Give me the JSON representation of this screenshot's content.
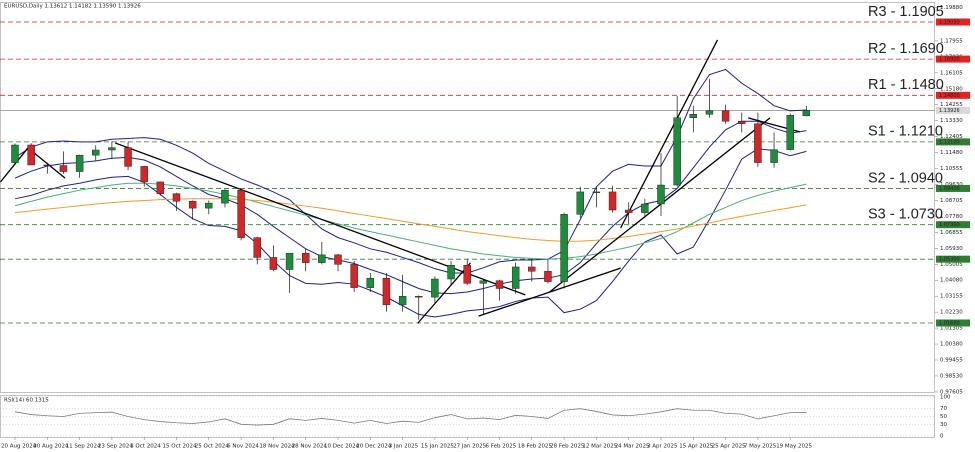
{
  "chart_data": {
    "type": "candlestick",
    "header": "EURUSD,Daily  1.13612 1.14182 1.13590 1.13926",
    "categories": [
      "20 Aug 2024",
      null,
      "30 Aug 2024",
      null,
      "11 Sep 2024",
      null,
      "23 Sep 2024",
      null,
      "3 Oct 2024",
      null,
      "15 Oct 2024",
      null,
      "25 Oct 2024",
      null,
      "6 Nov 2024",
      null,
      "18 Nov 2024",
      null,
      "28 Nov 2024",
      null,
      "10 Dec 2024",
      null,
      "20 Dec 2024",
      null,
      "3 Jan 2025",
      null,
      "15 Jan 2025",
      null,
      "27 Jan 2025",
      null,
      "6 Feb 2025",
      null,
      "18 Feb 2025",
      null,
      "28 Feb 2025",
      null,
      "12 Mar 2025",
      null,
      "24 Mar 2025",
      null,
      "3 Apr 2025",
      null,
      "15 Apr 2025",
      null,
      "25 Apr 2025",
      null,
      "7 May 2025",
      null,
      "19 May 2025",
      null
    ],
    "open": [
      1.109,
      1.1192,
      1.1076,
      1.1073,
      1.1038,
      1.1133,
      1.1163,
      1.1177,
      1.1068,
      1.0978,
      1.091,
      1.0866,
      1.0826,
      1.0855,
      1.093,
      1.0655,
      1.054,
      1.047,
      1.0565,
      1.051,
      1.0555,
      1.05,
      1.0365,
      1.042,
      1.0265,
      1.0315,
      1.031,
      1.0415,
      1.0495,
      1.039,
      1.0405,
      1.036,
      1.0485,
      1.046,
      1.04,
      1.079,
      1.092,
      1.092,
      1.0815,
      1.08,
      1.085,
      1.096,
      1.135,
      1.137,
      1.139,
      1.133,
      1.1315,
      1.109,
      1.1165,
      1.13612
    ],
    "high": [
      1.1201,
      1.1202,
      1.109,
      1.1155,
      1.1136,
      1.119,
      1.1214,
      1.1209,
      1.107,
      1.098,
      1.0915,
      1.087,
      1.087,
      1.0936,
      1.0937,
      1.066,
      1.061,
      1.056,
      1.059,
      1.063,
      1.056,
      1.052,
      1.045,
      1.045,
      1.044,
      1.032,
      1.043,
      1.052,
      1.0532,
      1.041,
      1.041,
      1.051,
      1.053,
      1.053,
      1.08,
      1.095,
      1.095,
      1.0955,
      1.086,
      1.088,
      1.1145,
      1.1475,
      1.142,
      1.1575,
      1.1425,
      1.138,
      1.138,
      1.1265,
      1.1375,
      1.14182
    ],
    "low": [
      1.1075,
      1.1079,
      1.1026,
      1.1025,
      1.1002,
      1.11,
      1.111,
      1.1045,
      1.095,
      1.09,
      1.081,
      1.076,
      1.079,
      1.083,
      1.064,
      1.05,
      1.046,
      1.0335,
      1.046,
      1.05,
      1.046,
      1.034,
      1.034,
      1.0225,
      1.0225,
      1.0178,
      1.027,
      1.038,
      1.038,
      1.021,
      1.029,
      1.033,
      1.04,
      1.039,
      1.036,
      1.077,
      1.083,
      1.08,
      1.0735,
      1.077,
      1.078,
      1.095,
      1.1265,
      1.135,
      1.1315,
      1.1265,
      1.1065,
      1.106,
      1.116,
      1.1359
    ],
    "close": [
      1.1192,
      1.1076,
      1.1073,
      1.1038,
      1.1133,
      1.1163,
      1.1177,
      1.1068,
      1.0978,
      1.091,
      1.0866,
      1.0826,
      1.0855,
      1.093,
      1.0655,
      1.054,
      1.047,
      1.0565,
      1.051,
      1.0555,
      1.05,
      1.0365,
      1.042,
      1.0265,
      1.0315,
      1.031,
      1.0415,
      1.0495,
      1.039,
      1.0405,
      1.036,
      1.0485,
      1.046,
      1.04,
      1.079,
      1.092,
      1.092,
      1.0815,
      1.08,
      1.085,
      1.096,
      1.135,
      1.137,
      1.139,
      1.133,
      1.1315,
      1.109,
      1.1165,
      1.1365,
      1.13926
    ],
    "up_color": "#1e8c3a",
    "down_color": "#d02828",
    "wick_color": "#111111",
    "series": [
      {
        "color": "#1f1f8f",
        "values": [
          1.112,
          1.118,
          1.121,
          1.1215,
          1.121,
          1.121,
          1.1225,
          1.123,
          1.1235,
          1.1225,
          1.119,
          1.1145,
          1.1085,
          1.104,
          1.0995,
          1.096,
          1.092,
          1.0875,
          1.079,
          1.0705,
          1.0655,
          1.0625,
          1.059,
          1.057,
          1.054,
          1.051,
          1.0475,
          1.045,
          1.045,
          1.048,
          1.0515,
          1.0525,
          1.0525,
          1.053,
          1.058,
          1.076,
          1.095,
          1.104,
          1.108,
          1.107,
          1.107,
          1.124,
          1.146,
          1.16,
          1.163,
          1.155,
          1.149,
          1.142,
          1.139,
          1.1395
        ]
      },
      {
        "color": "#1f1f8f",
        "values": [
          1.1,
          1.104,
          1.107,
          1.1085,
          1.109,
          1.11,
          1.1115,
          1.112,
          1.1105,
          1.1065,
          1.101,
          1.0955,
          1.0905,
          1.088,
          1.0845,
          1.079,
          1.072,
          1.0655,
          1.059,
          1.0545,
          1.0525,
          1.0505,
          1.047,
          1.044,
          1.04,
          1.036,
          1.0335,
          1.033,
          1.034,
          1.036,
          1.0385,
          1.0405,
          1.0415,
          1.042,
          1.044,
          1.051,
          1.062,
          1.072,
          1.08,
          1.085,
          1.087,
          1.094,
          1.106,
          1.118,
          1.128,
          1.133,
          1.133,
          1.129,
          1.126,
          1.1275
        ]
      },
      {
        "color": "#1f1f8f",
        "values": [
          1.088,
          1.09,
          1.093,
          1.0955,
          1.097,
          1.099,
          1.1005,
          1.101,
          1.0975,
          1.0905,
          1.083,
          1.0765,
          1.0725,
          1.072,
          1.0695,
          1.062,
          1.052,
          1.0435,
          1.039,
          1.0385,
          1.0395,
          1.0385,
          1.035,
          1.031,
          1.026,
          1.021,
          1.0195,
          1.021,
          1.023,
          1.024,
          1.0255,
          1.0285,
          1.0305,
          1.031,
          1.022,
          1.024,
          1.029,
          1.04,
          1.052,
          1.063,
          1.067,
          1.056,
          1.06,
          1.076,
          1.093,
          1.111,
          1.117,
          1.116,
          1.113,
          1.1155
        ]
      },
      {
        "color": "#4caf74",
        "values": [
          1.084,
          1.0865,
          1.089,
          1.091,
          1.093,
          1.0945,
          1.096,
          1.097,
          1.097,
          1.0965,
          1.0955,
          1.094,
          1.0925,
          1.0905,
          1.0885,
          1.086,
          1.0835,
          1.081,
          1.0785,
          1.076,
          1.0735,
          1.071,
          1.069,
          1.067,
          1.065,
          1.063,
          1.061,
          1.059,
          1.0575,
          1.056,
          1.055,
          1.054,
          1.0535,
          1.053,
          1.0535,
          1.0545,
          1.056,
          1.058,
          1.06,
          1.0625,
          1.065,
          1.069,
          1.074,
          1.079,
          1.083,
          1.087,
          1.09,
          1.0925,
          1.0945,
          1.0965
        ]
      },
      {
        "color": "#f39a2a",
        "values": [
          1.08,
          1.081,
          1.082,
          1.083,
          1.084,
          1.085,
          1.0858,
          1.0865,
          1.087,
          1.0875,
          1.0878,
          1.088,
          1.088,
          1.088,
          1.0877,
          1.087,
          1.086,
          1.085,
          1.0838,
          1.0825,
          1.081,
          1.0795,
          1.078,
          1.0765,
          1.075,
          1.0735,
          1.072,
          1.0705,
          1.069,
          1.0678,
          1.0666,
          1.0655,
          1.0645,
          1.0638,
          1.0633,
          1.0635,
          1.064,
          1.065,
          1.0662,
          1.0675,
          1.069,
          1.0705,
          1.0722,
          1.074,
          1.076,
          1.0778,
          1.0795,
          1.0812,
          1.0828,
          1.0845
        ]
      }
    ],
    "trendlines": [
      {
        "x": [
          -0.9,
          0.8
        ],
        "y": [
          1.0978,
          1.1175
        ]
      },
      {
        "x": [
          0.8,
          3.1
        ],
        "y": [
          1.1175,
          1.1
        ]
      },
      {
        "x": [
          6.2,
          31.6
        ],
        "y": [
          1.1204,
          1.0323
        ]
      },
      {
        "x": [
          24.95,
          28.2
        ],
        "y": [
          1.016,
          1.0508
        ]
      },
      {
        "x": [
          28.7,
          37.5
        ],
        "y": [
          1.02,
          1.0478
        ]
      },
      {
        "x": [
          37.5,
          43.5
        ],
        "y": [
          1.0711,
          1.1801
        ]
      },
      {
        "x": [
          33.1,
          46.75
        ],
        "y": [
          1.034,
          1.1349
        ]
      },
      {
        "x": [
          45.4,
          48.6
        ],
        "y": [
          1.1349,
          1.1268
        ]
      }
    ],
    "trendline_color": "#000000",
    "levels": [
      {
        "value": 1.1905,
        "tag": "1.19050",
        "label": "R3 - 1.1905",
        "color": "#e02424",
        "style": "dashed"
      },
      {
        "value": 1.169,
        "tag": "1.16900",
        "label": "R2 - 1.1690",
        "color": "#e02424",
        "style": "dashed"
      },
      {
        "value": 1.148,
        "tag": "1.14800",
        "label": "R1 - 1.1480",
        "color": "#e02424",
        "style": "dashed"
      },
      {
        "value": 1.13926,
        "tag": "1.13926",
        "color": "#8c8c8c",
        "style": "solid"
      },
      {
        "value": 1.121,
        "tag": "1.12100",
        "label": "S1 - 1.1210",
        "color": "#2e7d32",
        "style": "dashed"
      },
      {
        "value": 1.094,
        "tag": "1.09400",
        "label": "S2 - 1.0940",
        "color": "#2e7d32",
        "style": "dashed"
      },
      {
        "value": 1.073,
        "tag": "1.07300",
        "label": "S3 - 1.0730",
        "color": "#2e7d32",
        "style": "dashed"
      },
      {
        "value": 1.053,
        "tag": "1.05300",
        "color": "#2e7d32",
        "style": "dashed"
      },
      {
        "value": 1.016,
        "tag": "1.01600",
        "color": "#2e7d32",
        "style": "dashed"
      }
    ],
    "ylim": [
      0.976,
      1.2021
    ],
    "yticks": [
      {
        "value": 1.1988,
        "label": "1.19880"
      },
      {
        "value": 1.17955,
        "label": "1.17955"
      },
      {
        "value": 1.1703,
        "label": "1.17030"
      },
      {
        "value": 1.16105,
        "label": "1.16105"
      },
      {
        "value": 1.1518,
        "label": "1.15180"
      },
      {
        "value": 1.14255,
        "label": "1.14255"
      },
      {
        "value": 1.1333,
        "label": "1.13330"
      },
      {
        "value": 1.12405,
        "label": "1.12405"
      },
      {
        "value": 1.1148,
        "label": "1.11480"
      },
      {
        "value": 1.10555,
        "label": "1.10555"
      },
      {
        "value": 1.0963,
        "label": "1.09630"
      },
      {
        "value": 1.08705,
        "label": "1.08705"
      },
      {
        "value": 1.0778,
        "label": "1.07780"
      },
      {
        "value": 1.06855,
        "label": "1.06855"
      },
      {
        "value": 1.0593,
        "label": "1.05930"
      },
      {
        "value": 1.05005,
        "label": "1.05005"
      },
      {
        "value": 1.0408,
        "label": "1.04080"
      },
      {
        "value": 1.03155,
        "label": "1.03155"
      },
      {
        "value": 1.0223,
        "label": "1.02230"
      },
      {
        "value": 1.01305,
        "label": "1.01305"
      },
      {
        "value": 1.0038,
        "label": "1.00380"
      },
      {
        "value": 0.99455,
        "label": "0.99455"
      },
      {
        "value": 0.9853,
        "label": "0.98530"
      },
      {
        "value": 0.97605,
        "label": "0.97605"
      }
    ],
    "rsi": {
      "label": "RSI(14) 60.1315",
      "color": "#7a7a7a",
      "values": [
        62,
        55,
        52,
        50,
        58,
        60,
        61,
        50,
        42,
        37,
        34,
        32,
        36,
        44,
        30,
        28,
        30,
        44,
        40,
        45,
        40,
        33,
        40,
        32,
        38,
        35,
        47,
        55,
        44,
        46,
        42,
        53,
        50,
        45,
        66,
        70,
        63,
        54,
        52,
        56,
        62,
        70,
        66,
        66,
        58,
        56,
        44,
        52,
        60,
        60.1315
      ],
      "ylim": [
        0,
        100
      ],
      "yticks": [
        100,
        70,
        50,
        30,
        0
      ]
    }
  }
}
